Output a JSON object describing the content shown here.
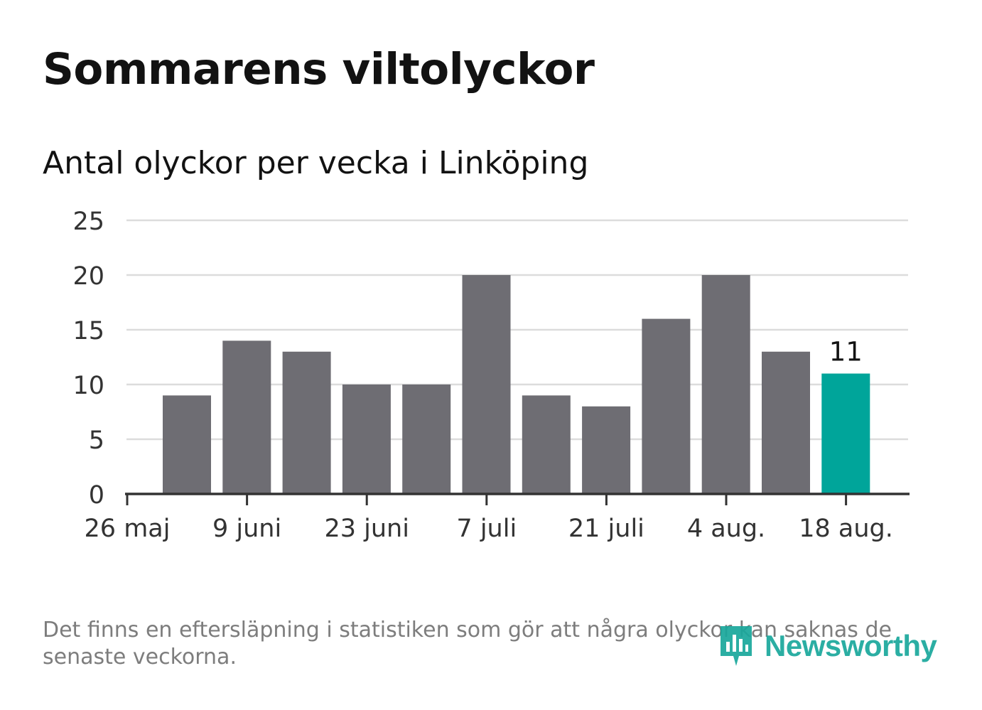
{
  "title": "Sommarens viltolyckor",
  "subtitle": "Antal olyckor per vecka i Linköping",
  "footnote": "Det finns en eftersläpning i statistiken som gör att några olyckor kan saknas de senaste veckorna.",
  "logo": {
    "text": "Newsworthy",
    "icon": "newsworthy-logo-icon",
    "color": "#1aa89c"
  },
  "chart_data": {
    "type": "bar",
    "categories": [
      "2 juni",
      "9 juni",
      "16 juni",
      "23 juni",
      "30 juni",
      "7 juli",
      "14 juli",
      "21 juli",
      "28 juli",
      "4 aug.",
      "11 aug.",
      "18 aug."
    ],
    "values": [
      9,
      14,
      13,
      10,
      10,
      20,
      9,
      8,
      16,
      20,
      13,
      11
    ],
    "x_tick_labels": [
      "26 maj",
      "9 juni",
      "23 juni",
      "7 juli",
      "21 juli",
      "4 aug.",
      "18 aug."
    ],
    "ylim": [
      0,
      25
    ],
    "y_ticks": [
      0,
      5,
      10,
      15,
      20,
      25
    ],
    "grid": true,
    "highlight": {
      "index": 11,
      "label": "11"
    },
    "colors": {
      "bar": "#6e6d73",
      "highlight": "#00a59a",
      "grid": "#dcdcdc",
      "axis": "#333333"
    }
  }
}
